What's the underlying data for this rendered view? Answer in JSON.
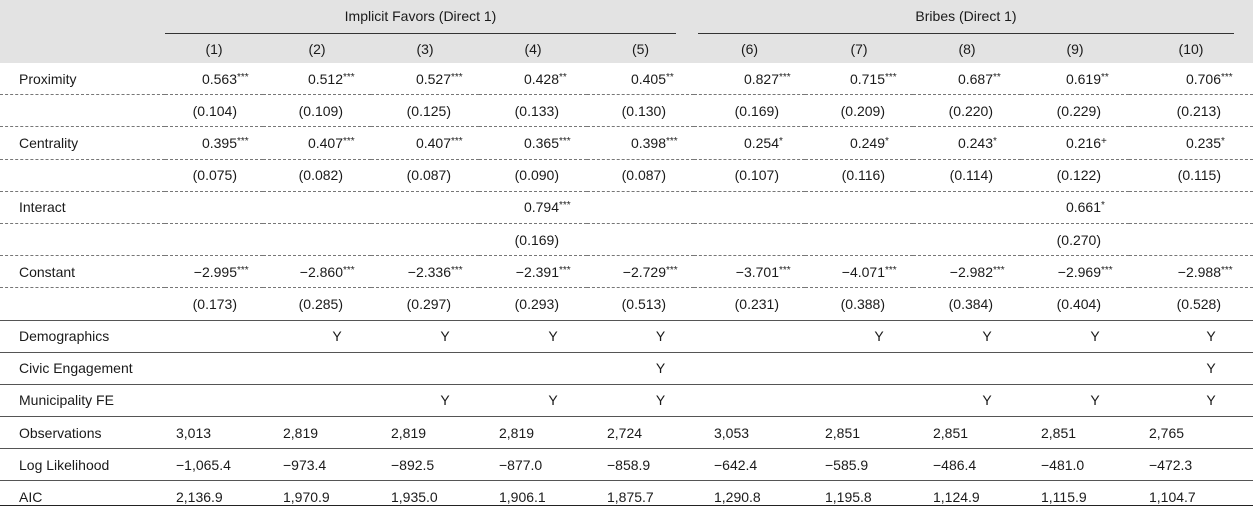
{
  "groups": {
    "implicit": "Implicit Favors (Direct 1)",
    "bribes": "Bribes (Direct 1)"
  },
  "columns": [
    "(1)",
    "(2)",
    "(3)",
    "(4)",
    "(5)",
    "(6)",
    "(7)",
    "(8)",
    "(9)",
    "(10)"
  ],
  "rows": {
    "proximity": {
      "label": "Proximity",
      "coef": [
        "0.563",
        "0.512",
        "0.527",
        "0.428",
        "0.405",
        "0.827",
        "0.715",
        "0.687",
        "0.619",
        "0.706"
      ],
      "stars": [
        "***",
        "***",
        "***",
        "**",
        "**",
        "***",
        "***",
        "**",
        "**",
        "***"
      ],
      "se": [
        "(0.104)",
        "(0.109)",
        "(0.125)",
        "(0.133)",
        "(0.130)",
        "(0.169)",
        "(0.209)",
        "(0.220)",
        "(0.229)",
        "(0.213)"
      ]
    },
    "centrality": {
      "label": "Centrality",
      "coef": [
        "0.395",
        "0.407",
        "0.407",
        "0.365",
        "0.398",
        "0.254",
        "0.249",
        "0.243",
        "0.216",
        "0.235"
      ],
      "stars": [
        "***",
        "***",
        "***",
        "***",
        "***",
        "*",
        "*",
        "*",
        "+",
        "*"
      ],
      "se": [
        "(0.075)",
        "(0.082)",
        "(0.087)",
        "(0.090)",
        "(0.087)",
        "(0.107)",
        "(0.116)",
        "(0.114)",
        "(0.122)",
        "(0.115)"
      ]
    },
    "interact": {
      "label": "Interact",
      "coef": [
        "",
        "",
        "",
        "0.794",
        "",
        "",
        "",
        "",
        "0.661",
        ""
      ],
      "stars": [
        "",
        "",
        "",
        "***",
        "",
        "",
        "",
        "",
        "*",
        ""
      ],
      "se": [
        "",
        "",
        "",
        "(0.169)",
        "",
        "",
        "",
        "",
        "(0.270)",
        ""
      ]
    },
    "constant": {
      "label": "Constant",
      "coef": [
        "−2.995",
        "−2.860",
        "−2.336",
        "−2.391",
        "−2.729",
        "−3.701",
        "−4.071",
        "−2.982",
        "−2.969",
        "−2.988"
      ],
      "stars": [
        "***",
        "***",
        "***",
        "***",
        "***",
        "***",
        "***",
        "***",
        "***",
        "***"
      ],
      "se": [
        "(0.173)",
        "(0.285)",
        "(0.297)",
        "(0.293)",
        "(0.513)",
        "(0.231)",
        "(0.388)",
        "(0.384)",
        "(0.404)",
        "(0.528)"
      ]
    },
    "demographics": {
      "label": "Demographics",
      "vals": [
        "",
        "Y",
        "Y",
        "Y",
        "Y",
        "",
        "Y",
        "Y",
        "Y",
        "Y"
      ]
    },
    "civic": {
      "label": "Civic Engagement",
      "vals": [
        "",
        "",
        "",
        "",
        "Y",
        "",
        "",
        "",
        "",
        "Y"
      ]
    },
    "municipality": {
      "label": "Municipality FE",
      "vals": [
        "",
        "",
        "Y",
        "Y",
        "Y",
        "",
        "",
        "Y",
        "Y",
        "Y"
      ]
    },
    "observations": {
      "label": "Observations",
      "vals": [
        "3,013",
        "2,819",
        "2,819",
        "2,819",
        "2,724",
        "3,053",
        "2,851",
        "2,851",
        "2,851",
        "2,765"
      ]
    },
    "loglik": {
      "label": "Log Likelihood",
      "vals": [
        "−1,065.4",
        "−973.4",
        "−892.5",
        "−877.0",
        "−858.9",
        "−642.4",
        "−585.9",
        "−486.4",
        "−481.0",
        "−472.3"
      ]
    },
    "aic": {
      "label": "AIC",
      "vals": [
        "2,136.9",
        "1,970.9",
        "1,935.0",
        "1,906.1",
        "1,875.7",
        "1,290.8",
        "1,195.8",
        "1,124.9",
        "1,115.9",
        "1,104.7"
      ]
    }
  }
}
